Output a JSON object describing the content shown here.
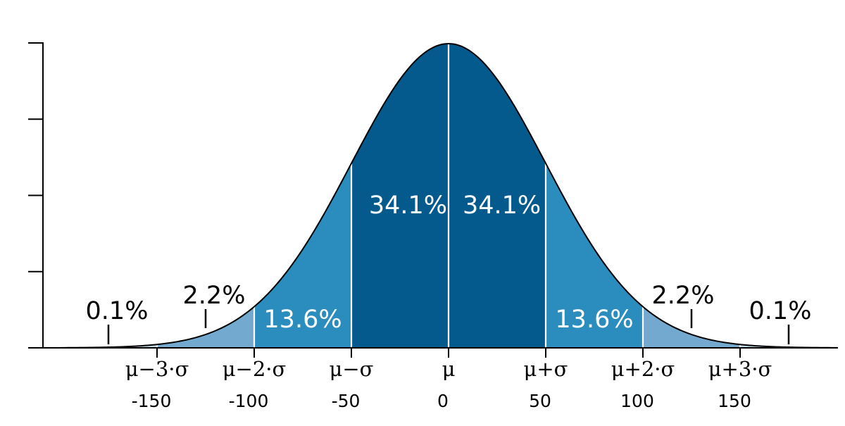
{
  "colors": {
    "band_1sigma": "#045a8d",
    "band_2sigma": "#2b8cbe",
    "band_3sigma": "#74a9cf",
    "band_tail": "#bdd7e7",
    "curve": "#000000",
    "divider": "#ffffff",
    "axis": "#000000"
  },
  "chart_data": {
    "type": "area",
    "distribution": "normal",
    "mean": 0,
    "sd": 50,
    "xlim": [
      -200,
      200
    ],
    "percent_labels": [
      {
        "x": -175,
        "text": "0.1%",
        "style": "outer"
      },
      {
        "x": -125,
        "text": "2.2%",
        "style": "outer"
      },
      {
        "x": -75,
        "text": "13.6%",
        "style": "inner"
      },
      {
        "x": -25,
        "text": "34.1%",
        "style": "inner"
      },
      {
        "x": 25,
        "text": "34.1%",
        "style": "inner"
      },
      {
        "x": 75,
        "text": "13.6%",
        "style": "inner"
      },
      {
        "x": 125,
        "text": "2.2%",
        "style": "outer"
      },
      {
        "x": 175,
        "text": "0.1%",
        "style": "outer"
      }
    ],
    "sigma_labels": [
      {
        "x": -150,
        "text": "μ−3·σ"
      },
      {
        "x": -100,
        "text": "μ−2·σ"
      },
      {
        "x": -50,
        "text": "μ−σ"
      },
      {
        "x": 0,
        "text": "μ"
      },
      {
        "x": 50,
        "text": "μ+σ"
      },
      {
        "x": 100,
        "text": "μ+2·σ"
      },
      {
        "x": 150,
        "text": "μ+3·σ"
      }
    ],
    "x_tick_labels": [
      "-150",
      "-100",
      "-50",
      "0",
      "50",
      "100",
      "150"
    ],
    "x_tick_values": [
      -150,
      -100,
      -50,
      0,
      50,
      100,
      150
    ],
    "y_ticks_count": 5
  }
}
